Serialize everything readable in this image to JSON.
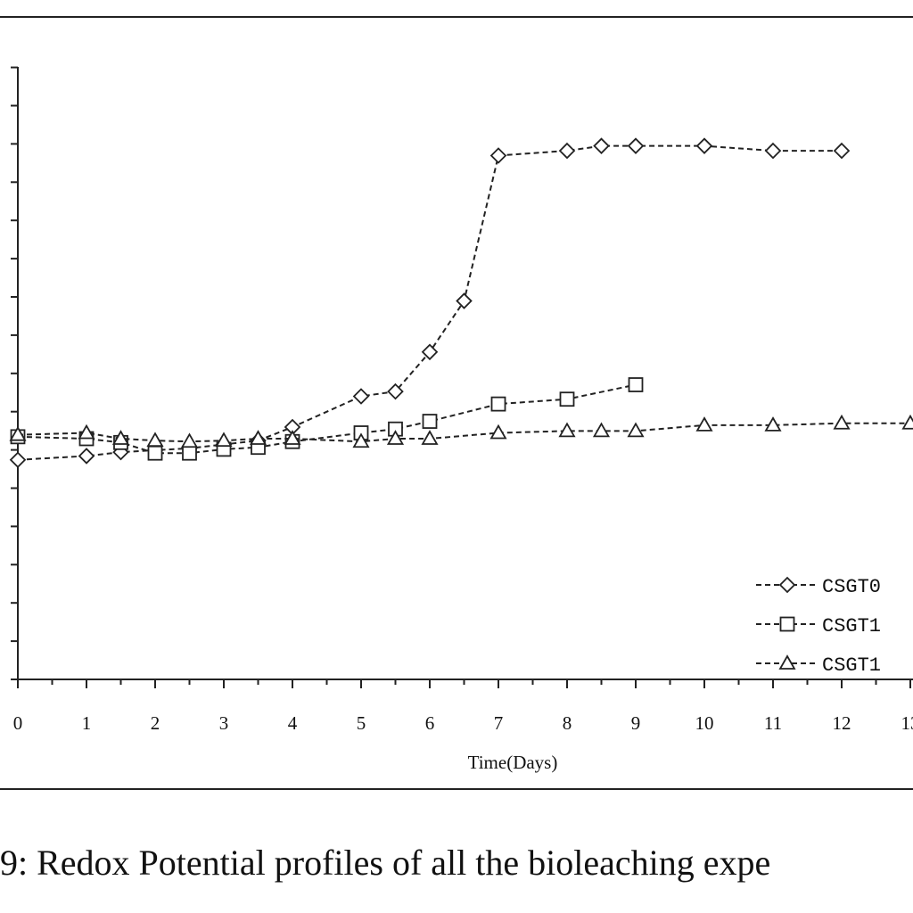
{
  "caption": "9: Redox Potential profiles of all the bioleaching expe",
  "chart_data": {
    "type": "line",
    "title": "",
    "xlabel": "Time(Days)",
    "ylabel": "",
    "xlim": [
      0,
      13
    ],
    "x_ticks": [
      "0",
      "1",
      "2",
      "3",
      "4",
      "5",
      "6",
      "7",
      "8",
      "9",
      "10",
      "11",
      "12",
      "13"
    ],
    "grid": false,
    "legend_position": "bottom-right",
    "series": [
      {
        "name": "CSGT0",
        "marker": "diamond",
        "points": [
          [
            0,
            428
          ],
          [
            1,
            432
          ],
          [
            1.5,
            436
          ],
          [
            2,
            438
          ],
          [
            2.5,
            440
          ],
          [
            3,
            444
          ],
          [
            3.5,
            448
          ],
          [
            4,
            462
          ],
          [
            5,
            494
          ],
          [
            5.5,
            499
          ],
          [
            6,
            540
          ],
          [
            6.5,
            593
          ],
          [
            7,
            744
          ],
          [
            8,
            749
          ],
          [
            8.5,
            754
          ],
          [
            9,
            754
          ],
          [
            10,
            754
          ],
          [
            11,
            749
          ],
          [
            12,
            749
          ]
        ]
      },
      {
        "name": "CSGT1",
        "marker": "square",
        "points": [
          [
            0,
            452
          ],
          [
            1,
            450
          ],
          [
            1.5,
            446
          ],
          [
            2,
            435
          ],
          [
            2.5,
            435
          ],
          [
            3,
            439
          ],
          [
            3.5,
            441
          ],
          [
            4,
            447
          ],
          [
            5,
            456
          ],
          [
            5.5,
            460
          ],
          [
            6,
            468
          ],
          [
            7,
            486
          ],
          [
            8,
            491
          ],
          [
            9,
            506
          ]
        ]
      },
      {
        "name": "CSGT1",
        "marker": "triangle",
        "points": [
          [
            0,
            454
          ],
          [
            1,
            456
          ],
          [
            1.5,
            450
          ],
          [
            2,
            448
          ],
          [
            2.5,
            447
          ],
          [
            3,
            448
          ],
          [
            3.5,
            450
          ],
          [
            4,
            450
          ],
          [
            5,
            447
          ],
          [
            5.5,
            450
          ],
          [
            6,
            450
          ],
          [
            7,
            456
          ],
          [
            8,
            458
          ],
          [
            8.5,
            458
          ],
          [
            9,
            458
          ],
          [
            10,
            464
          ],
          [
            11,
            464
          ],
          [
            12,
            466
          ],
          [
            13,
            466
          ]
        ]
      }
    ]
  }
}
